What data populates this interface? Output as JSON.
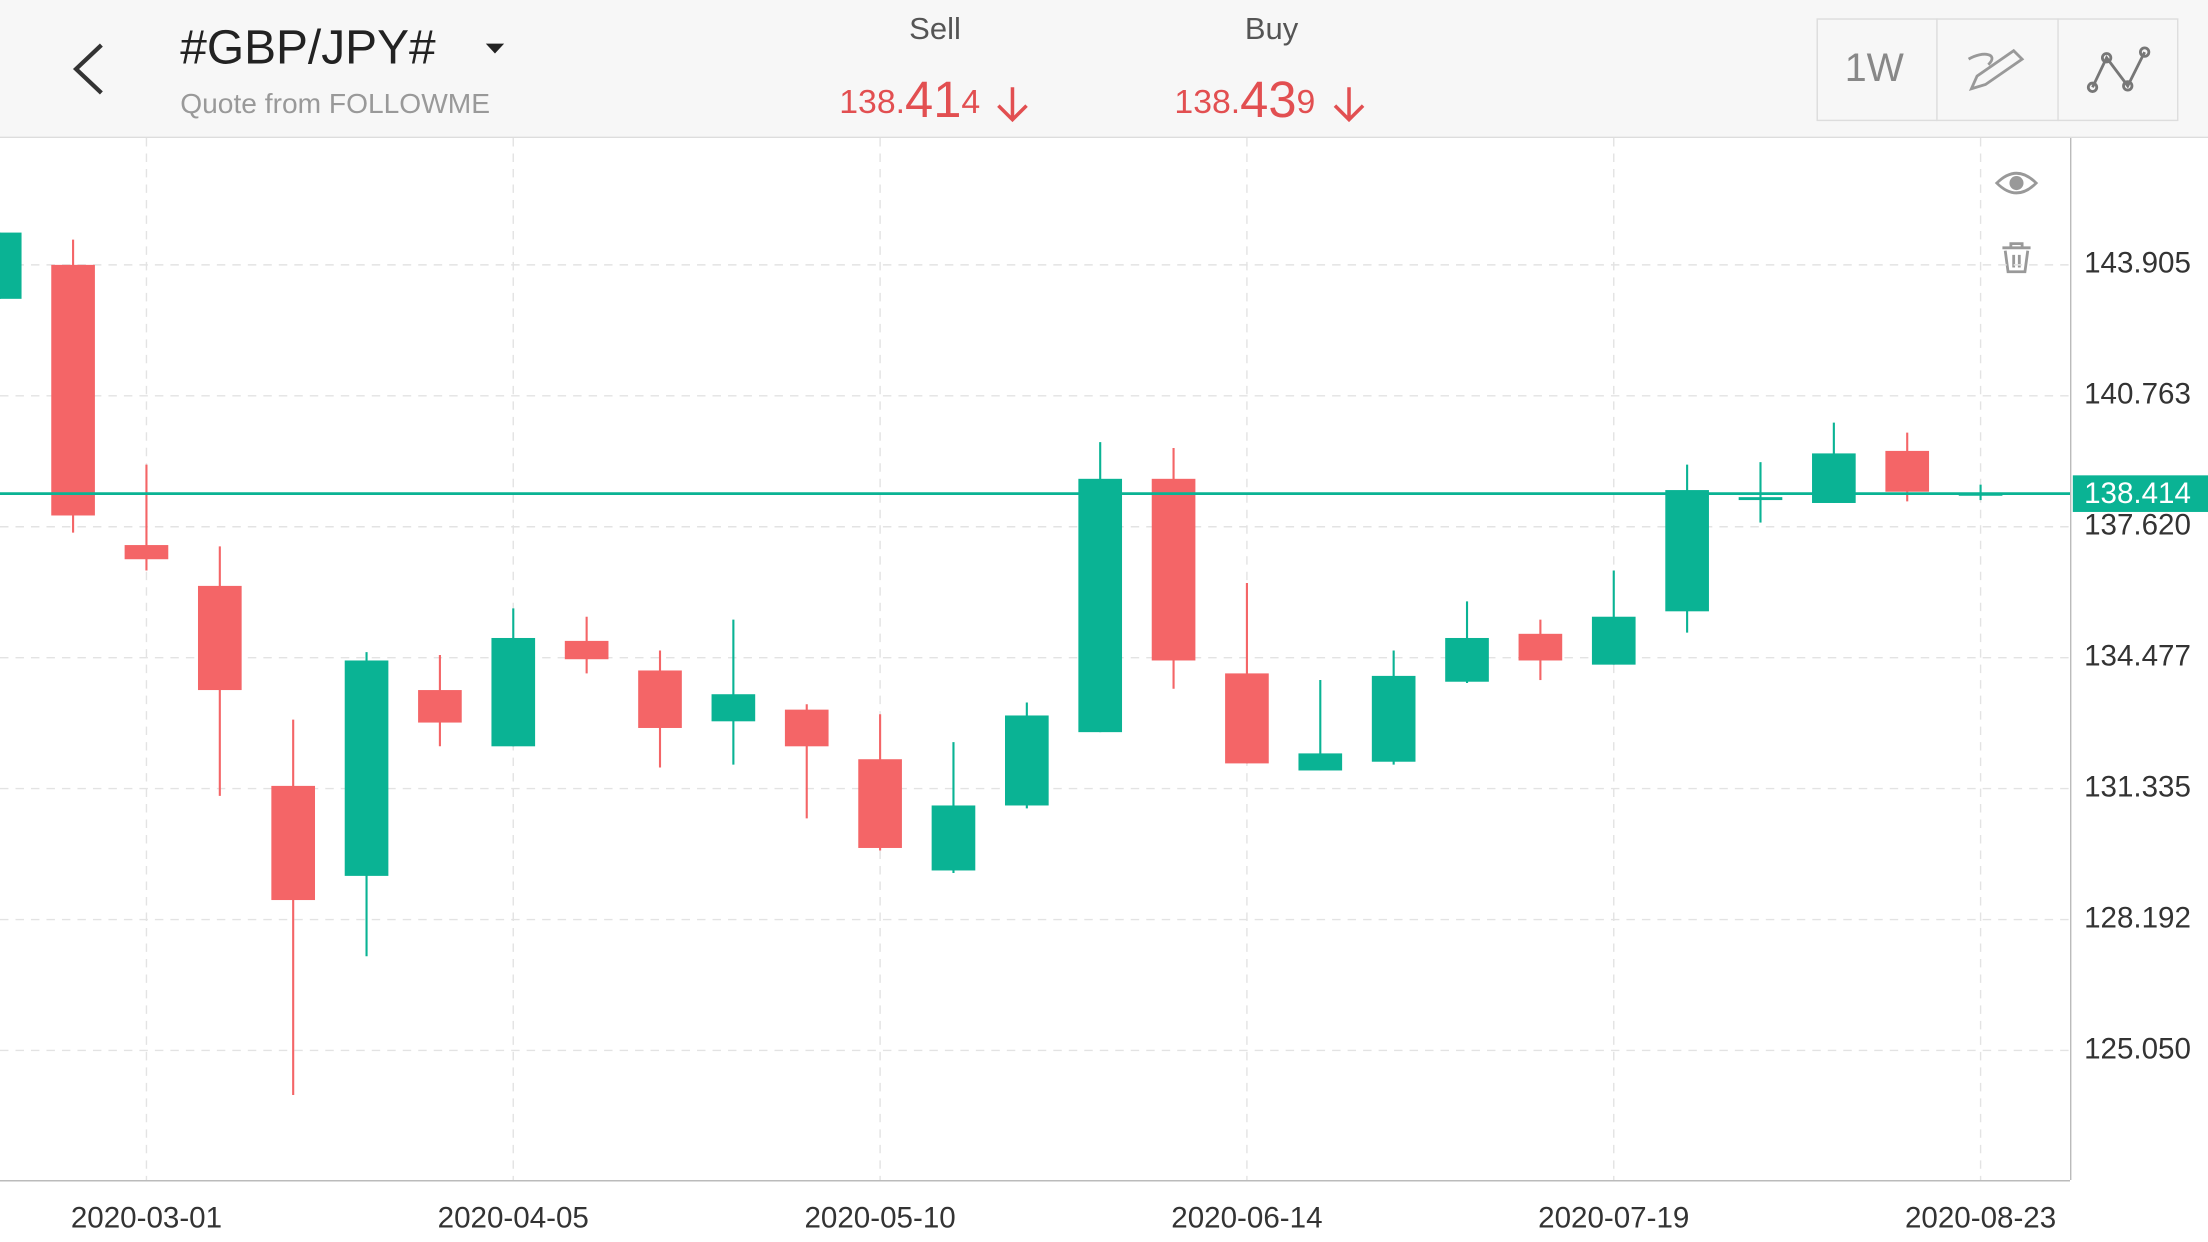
{
  "header": {
    "symbol": "#GBP/JPY#",
    "subtitle": "Quote from FOLLOWME",
    "sell_label": "Sell",
    "buy_label": "Buy",
    "sell_price": "138.414",
    "buy_price": "138.439",
    "period": "1W"
  },
  "chart_data": {
    "type": "candlestick",
    "x": [
      "2020-02-16",
      "2020-02-23",
      "2020-03-01",
      "2020-03-08",
      "2020-03-15",
      "2020-03-22",
      "2020-03-29",
      "2020-04-05",
      "2020-04-12",
      "2020-04-19",
      "2020-04-26",
      "2020-05-03",
      "2020-05-10",
      "2020-05-17",
      "2020-05-24",
      "2020-05-31",
      "2020-06-07",
      "2020-06-14",
      "2020-06-21",
      "2020-06-28",
      "2020-07-05",
      "2020-07-12",
      "2020-07-19",
      "2020-07-26",
      "2020-08-02",
      "2020-08-09",
      "2020-08-16",
      "2020-08-23"
    ],
    "open": [
      143.09,
      143.905,
      137.18,
      136.2,
      131.4,
      129.24,
      133.7,
      132.35,
      134.88,
      134.17,
      132.95,
      133.23,
      132.04,
      129.37,
      130.93,
      132.69,
      138.77,
      134.1,
      131.77,
      131.98,
      133.9,
      135.05,
      134.31,
      135.59,
      138.26,
      138.19,
      139.44,
      138.4
    ],
    "close": [
      144.68,
      137.89,
      136.84,
      133.7,
      128.66,
      134.41,
      132.92,
      134.95,
      134.44,
      132.79,
      133.6,
      132.35,
      129.91,
      130.93,
      133.09,
      138.77,
      134.41,
      131.94,
      132.18,
      134.04,
      134.95,
      134.41,
      135.46,
      138.5,
      138.33,
      139.38,
      138.46,
      138.414
    ],
    "high": [
      144.68,
      144.51,
      139.11,
      137.15,
      132.99,
      134.61,
      134.54,
      135.66,
      135.46,
      134.65,
      135.39,
      133.36,
      133.12,
      132.45,
      133.4,
      139.65,
      139.51,
      136.27,
      133.94,
      134.65,
      135.83,
      135.39,
      136.57,
      139.11,
      139.17,
      140.12,
      139.88,
      138.63
    ],
    "low": [
      143.09,
      137.48,
      136.57,
      131.16,
      123.98,
      127.31,
      132.35,
      132.35,
      134.1,
      131.84,
      131.91,
      130.62,
      129.85,
      129.31,
      130.86,
      132.69,
      133.73,
      131.94,
      131.77,
      131.91,
      133.87,
      133.94,
      134.31,
      135.08,
      137.72,
      138.19,
      138.23,
      138.26
    ],
    "up_color": "#0ab394",
    "down_color": "#f46567",
    "xticks": [
      "2020-03-01",
      "2020-04-05",
      "2020-05-10",
      "2020-06-14",
      "2020-07-19",
      "2020-08-23"
    ],
    "ylim": [
      121.94,
      146.95
    ],
    "yticks": [
      143.905,
      140.763,
      {
        "value": 137.62,
        "label": "137.620"
      },
      134.477,
      131.335,
      128.192,
      {
        "value": 125.05,
        "label": "125.050"
      }
    ],
    "grid": true,
    "last_price": 138.414,
    "last_price_color": "#0ab394"
  }
}
